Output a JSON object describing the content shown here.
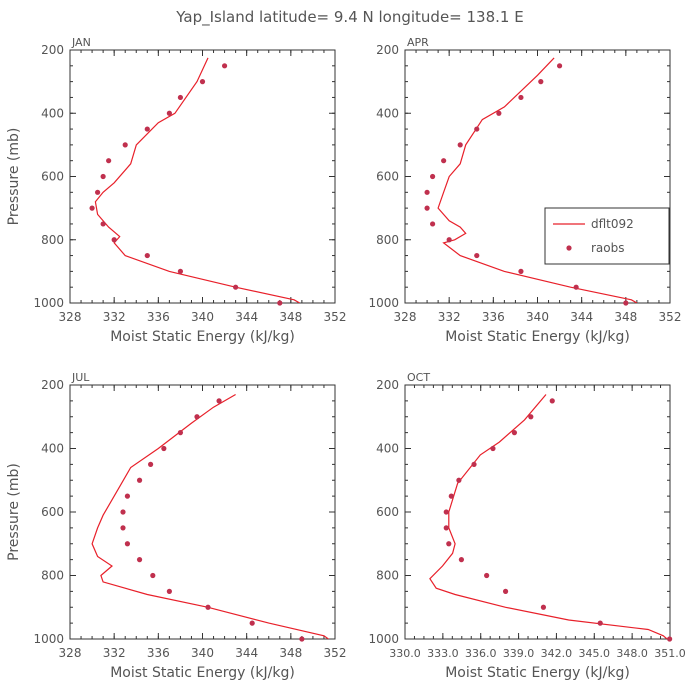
{
  "title": "Yap_Island  latitude= 9.4 N longitude= 138.1 E",
  "legend": {
    "model_label": "dflt092",
    "obs_label": "raobs"
  },
  "colors": {
    "model": "#e8202a",
    "obs": "#c0304e",
    "axis": "#333333",
    "text": "#555555"
  },
  "chart_data": [
    {
      "type": "line",
      "panel": "JAN",
      "xlabel": "Moist Static Energy (kJ/kg)",
      "ylabel": "Pressure (mb)",
      "xlim": [
        328,
        352
      ],
      "xticks": [
        328,
        332,
        336,
        340,
        344,
        348,
        352
      ],
      "ylim": [
        1000,
        200
      ],
      "yticks": [
        200,
        400,
        600,
        800,
        1000
      ],
      "legend_visible": false,
      "model": [
        [
          348.8,
          1000
        ],
        [
          348.3,
          990
        ],
        [
          343,
          950
        ],
        [
          337,
          900
        ],
        [
          333,
          850
        ],
        [
          332,
          810
        ],
        [
          332.5,
          790
        ],
        [
          331.5,
          760
        ],
        [
          330.5,
          720
        ],
        [
          330.3,
          680
        ],
        [
          331,
          650
        ],
        [
          332,
          620
        ],
        [
          333.5,
          560
        ],
        [
          334,
          500
        ],
        [
          336,
          430
        ],
        [
          337.5,
          400
        ],
        [
          339.5,
          300
        ],
        [
          340.5,
          225
        ]
      ],
      "obs": [
        [
          347,
          1000
        ],
        [
          343,
          950
        ],
        [
          338,
          900
        ],
        [
          335,
          850
        ],
        [
          332,
          800
        ],
        [
          331,
          750
        ],
        [
          330,
          700
        ],
        [
          330.5,
          650
        ],
        [
          331,
          600
        ],
        [
          331.5,
          550
        ],
        [
          333,
          500
        ],
        [
          335,
          450
        ],
        [
          337,
          400
        ],
        [
          338,
          350
        ],
        [
          340,
          300
        ],
        [
          342,
          250
        ]
      ]
    },
    {
      "type": "line",
      "panel": "APR",
      "xlabel": "Moist Static Energy (kJ/kg)",
      "ylabel": "",
      "xlim": [
        328,
        352
      ],
      "xticks": [
        328,
        332,
        336,
        340,
        344,
        348,
        352
      ],
      "ylim": [
        1000,
        200
      ],
      "yticks": [
        200,
        400,
        600,
        800,
        1000
      ],
      "legend_visible": true,
      "model": [
        [
          349,
          1000
        ],
        [
          348.5,
          990
        ],
        [
          343,
          950
        ],
        [
          337,
          900
        ],
        [
          333,
          850
        ],
        [
          331.5,
          810
        ],
        [
          332.5,
          800
        ],
        [
          333.5,
          780
        ],
        [
          333,
          760
        ],
        [
          332,
          740
        ],
        [
          331,
          700
        ],
        [
          331.5,
          650
        ],
        [
          332,
          600
        ],
        [
          333,
          560
        ],
        [
          333.5,
          500
        ],
        [
          335,
          420
        ],
        [
          337,
          380
        ],
        [
          340,
          280
        ],
        [
          341.5,
          225
        ]
      ],
      "obs": [
        [
          348,
          1000
        ],
        [
          343.5,
          950
        ],
        [
          338.5,
          900
        ],
        [
          334.5,
          850
        ],
        [
          332,
          800
        ],
        [
          330.5,
          750
        ],
        [
          330,
          700
        ],
        [
          330,
          650
        ],
        [
          330.5,
          600
        ],
        [
          331.5,
          550
        ],
        [
          333,
          500
        ],
        [
          334.5,
          450
        ],
        [
          336.5,
          400
        ],
        [
          338.5,
          350
        ],
        [
          340.3,
          300
        ],
        [
          342,
          250
        ]
      ]
    },
    {
      "type": "line",
      "panel": "JUL",
      "xlabel": "Moist Static Energy (kJ/kg)",
      "ylabel": "Pressure (mb)",
      "xlim": [
        328,
        352
      ],
      "xticks": [
        328,
        332,
        336,
        340,
        344,
        348,
        352
      ],
      "ylim": [
        1000,
        200
      ],
      "yticks": [
        200,
        400,
        600,
        800,
        1000
      ],
      "legend_visible": false,
      "model": [
        [
          351.8,
          1010
        ],
        [
          351,
          990
        ],
        [
          346,
          950
        ],
        [
          340.5,
          900
        ],
        [
          335,
          860
        ],
        [
          331,
          820
        ],
        [
          330.8,
          800
        ],
        [
          331.8,
          770
        ],
        [
          330.5,
          740
        ],
        [
          330,
          700
        ],
        [
          330.5,
          650
        ],
        [
          331,
          610
        ],
        [
          332.5,
          520
        ],
        [
          333.5,
          460
        ],
        [
          336,
          400
        ],
        [
          339,
          320
        ],
        [
          341,
          270
        ],
        [
          343,
          230
        ]
      ],
      "obs": [
        [
          349,
          1000
        ],
        [
          344.5,
          950
        ],
        [
          340.5,
          900
        ],
        [
          337,
          850
        ],
        [
          335.5,
          800
        ],
        [
          334.3,
          750
        ],
        [
          333.2,
          700
        ],
        [
          332.8,
          650
        ],
        [
          332.8,
          600
        ],
        [
          333.2,
          550
        ],
        [
          334.3,
          500
        ],
        [
          335.3,
          450
        ],
        [
          336.5,
          400
        ],
        [
          338,
          350
        ],
        [
          339.5,
          300
        ],
        [
          341.5,
          250
        ]
      ]
    },
    {
      "type": "line",
      "panel": "OCT",
      "xlabel": "Moist Static Energy (kJ/kg)",
      "ylabel": "",
      "xlim": [
        330.03,
        351.03
      ],
      "xticks": [
        330.03,
        333.03,
        336.03,
        339.03,
        342.03,
        345.03,
        348.03,
        351.03
      ],
      "xtick_labels": [
        "330.0",
        "333.0",
        "336.0",
        "339.0",
        "342.0",
        "345.0",
        "348.0",
        "351.0"
      ],
      "ylim": [
        1000,
        200
      ],
      "yticks": [
        200,
        400,
        600,
        800,
        1000
      ],
      "legend_visible": false,
      "model": [
        [
          351.1,
          1010
        ],
        [
          350.5,
          990
        ],
        [
          349.3,
          970
        ],
        [
          343,
          940
        ],
        [
          338,
          900
        ],
        [
          334,
          860
        ],
        [
          332.5,
          840
        ],
        [
          332,
          810
        ],
        [
          333,
          770
        ],
        [
          333.8,
          730
        ],
        [
          334,
          700
        ],
        [
          333.5,
          650
        ],
        [
          333.5,
          600
        ],
        [
          334.2,
          510
        ],
        [
          336,
          420
        ],
        [
          337.5,
          380
        ],
        [
          339.5,
          310
        ],
        [
          341.2,
          230
        ]
      ],
      "obs": [
        [
          351,
          1000
        ],
        [
          345.5,
          950
        ],
        [
          341,
          900
        ],
        [
          338,
          850
        ],
        [
          336.5,
          800
        ],
        [
          334.5,
          750
        ],
        [
          333.5,
          700
        ],
        [
          333.3,
          650
        ],
        [
          333.3,
          600
        ],
        [
          333.7,
          550
        ],
        [
          334.3,
          500
        ],
        [
          335.5,
          450
        ],
        [
          337,
          400
        ],
        [
          338.7,
          350
        ],
        [
          340,
          300
        ],
        [
          341.7,
          250
        ]
      ]
    }
  ]
}
